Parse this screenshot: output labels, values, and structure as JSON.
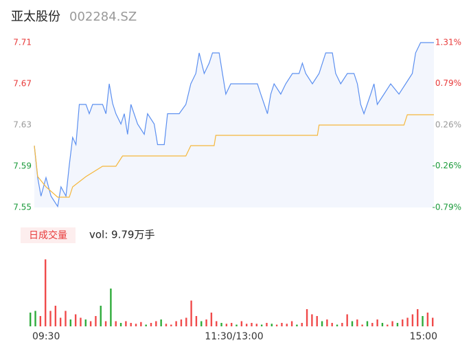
{
  "chart_data": [
    {
      "type": "line",
      "title": "亚太股份",
      "subtitle": "002284.SZ",
      "xlim": [
        0,
        240
      ],
      "xticks": [
        {
          "value": 0,
          "label": "09:30"
        },
        {
          "value": 120,
          "label": "11:30/13:00"
        },
        {
          "value": 240,
          "label": "15:00"
        }
      ],
      "ylim": [
        7.55,
        7.71
      ],
      "yticks": [
        7.71,
        7.67,
        7.63,
        7.59,
        7.55
      ],
      "ytick_colors": [
        "#e83a3a",
        "#e83a3a",
        "#999999",
        "#1a9a3a",
        "#1a9a3a"
      ],
      "y2lim": [
        -0.79,
        1.31
      ],
      "y2ticks": [
        {
          "value": 1.31,
          "label": "1.31%"
        },
        {
          "value": 0.79,
          "label": "0.79%"
        },
        {
          "value": 0.26,
          "label": "0.26%"
        },
        {
          "value": -0.26,
          "label": "-0.26%"
        },
        {
          "value": -0.79,
          "label": "-0.79%"
        }
      ],
      "y2tick_colors": [
        "#e83a3a",
        "#e83a3a",
        "#999999",
        "#1a9a3a",
        "#1a9a3a"
      ],
      "area_color": "#f3f6fd",
      "series": [
        {
          "name": "price",
          "color": "#5b8ff0",
          "x": [
            0,
            2,
            4,
            7,
            10,
            14,
            16,
            19,
            21,
            23,
            25,
            27,
            31,
            33,
            35,
            41,
            43,
            45,
            47,
            49,
            52,
            54,
            56,
            58,
            62,
            66,
            68,
            72,
            74,
            78,
            80,
            87,
            91,
            94,
            97,
            99,
            102,
            105,
            107,
            111,
            113,
            115,
            118,
            122,
            126,
            130,
            134,
            136,
            140,
            142,
            144,
            148,
            151,
            155,
            159,
            161,
            163,
            167,
            171,
            175,
            179,
            181,
            184,
            188,
            192,
            194,
            196,
            198,
            202,
            204,
            206,
            210,
            214,
            219,
            223,
            227,
            229,
            232,
            240
          ],
          "values": [
            7.61,
            7.579,
            7.561,
            7.579,
            7.561,
            7.551,
            7.57,
            7.561,
            7.591,
            7.618,
            7.611,
            7.65,
            7.65,
            7.641,
            7.65,
            7.65,
            7.641,
            7.67,
            7.651,
            7.641,
            7.631,
            7.641,
            7.621,
            7.65,
            7.631,
            7.621,
            7.641,
            7.631,
            7.611,
            7.611,
            7.641,
            7.641,
            7.65,
            7.67,
            7.68,
            7.7,
            7.68,
            7.69,
            7.7,
            7.7,
            7.68,
            7.66,
            7.67,
            7.67,
            7.67,
            7.67,
            7.67,
            7.66,
            7.641,
            7.66,
            7.67,
            7.66,
            7.67,
            7.68,
            7.68,
            7.69,
            7.68,
            7.67,
            7.68,
            7.7,
            7.7,
            7.68,
            7.67,
            7.68,
            7.68,
            7.67,
            7.65,
            7.641,
            7.66,
            7.67,
            7.65,
            7.66,
            7.67,
            7.66,
            7.67,
            7.68,
            7.7,
            7.71,
            7.71
          ]
        },
        {
          "name": "average",
          "color": "#f5b73b",
          "x": [
            0,
            2,
            7,
            14,
            21,
            23,
            31,
            41,
            49,
            53,
            91,
            94,
            108,
            109,
            170,
            171,
            222,
            224,
            240
          ],
          "values": [
            7.61,
            7.58,
            7.57,
            7.56,
            7.56,
            7.57,
            7.58,
            7.59,
            7.59,
            7.6,
            7.6,
            7.61,
            7.61,
            7.62,
            7.62,
            7.63,
            7.63,
            7.64,
            7.64
          ]
        }
      ]
    },
    {
      "type": "bar",
      "title": "日成交量",
      "subtitle": "vol: 9.79万手",
      "xlim": [
        0,
        240
      ],
      "ylim": [
        0,
        4000
      ],
      "x": [
        0,
        3,
        6,
        9,
        12,
        15,
        18,
        21,
        24,
        27,
        30,
        33,
        36,
        39,
        42,
        45,
        48,
        51,
        54,
        57,
        60,
        63,
        66,
        69,
        72,
        75,
        78,
        81,
        84,
        87,
        90,
        93,
        96,
        99,
        102,
        105,
        108,
        111,
        114,
        117,
        120,
        123,
        126,
        129,
        132,
        135,
        138,
        141,
        144,
        147,
        150,
        153,
        156,
        159,
        162,
        165,
        168,
        171,
        174,
        177,
        180,
        183,
        186,
        189,
        192,
        195,
        198,
        201,
        204,
        207,
        210,
        213,
        216,
        219,
        222,
        225,
        228,
        231,
        234,
        237,
        240
      ],
      "values": [
        800,
        900,
        600,
        3900,
        900,
        1200,
        500,
        900,
        400,
        700,
        500,
        400,
        300,
        600,
        1200,
        300,
        2200,
        300,
        200,
        300,
        200,
        150,
        250,
        100,
        200,
        300,
        400,
        150,
        100,
        300,
        400,
        500,
        1500,
        600,
        300,
        400,
        800,
        300,
        200,
        150,
        200,
        100,
        300,
        150,
        200,
        150,
        100,
        200,
        150,
        100,
        200,
        150,
        300,
        100,
        200,
        1000,
        700,
        600,
        300,
        400,
        200,
        100,
        200,
        700,
        300,
        400,
        100,
        300,
        200,
        400,
        200,
        100,
        300,
        200,
        400,
        500,
        700,
        1000,
        600,
        800,
        500
      ],
      "colors": [
        "#2eab3a",
        "#2eab3a",
        "#f04a4a",
        "#f04a4a",
        "#f04a4a",
        "#f04a4a",
        "#f04a4a",
        "#f04a4a",
        "#2eab3a",
        "#f04a4a",
        "#f04a4a",
        "#2eab3a",
        "#f04a4a",
        "#f04a4a",
        "#2eab3a",
        "#f04a4a",
        "#2eab3a",
        "#f04a4a",
        "#2eab3a",
        "#f04a4a",
        "#f04a4a",
        "#f04a4a",
        "#f04a4a",
        "#2eab3a",
        "#f04a4a",
        "#f04a4a",
        "#2eab3a",
        "#f04a4a",
        "#f04a4a",
        "#f04a4a",
        "#f04a4a",
        "#f04a4a",
        "#f04a4a",
        "#f04a4a",
        "#2eab3a",
        "#f04a4a",
        "#f04a4a",
        "#f04a4a",
        "#2eab3a",
        "#f04a4a",
        "#f04a4a",
        "#2eab3a",
        "#f04a4a",
        "#f04a4a",
        "#f04a4a",
        "#f04a4a",
        "#2eab3a",
        "#f04a4a",
        "#2eab3a",
        "#f04a4a",
        "#f04a4a",
        "#f04a4a",
        "#f04a4a",
        "#2eab3a",
        "#f04a4a",
        "#f04a4a",
        "#f04a4a",
        "#f04a4a",
        "#2eab3a",
        "#f04a4a",
        "#f04a4a",
        "#2eab3a",
        "#f04a4a",
        "#f04a4a",
        "#2eab3a",
        "#f04a4a",
        "#f04a4a",
        "#2eab3a",
        "#f04a4a",
        "#f04a4a",
        "#2eab3a",
        "#f04a4a",
        "#f04a4a",
        "#2eab3a",
        "#f04a4a",
        "#f04a4a",
        "#f04a4a",
        "#f04a4a",
        "#2eab3a",
        "#f04a4a",
        "#f04a4a"
      ]
    }
  ]
}
